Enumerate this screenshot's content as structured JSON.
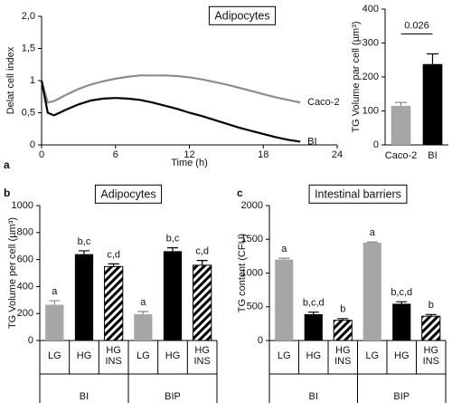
{
  "chart_data": [
    {
      "type": "line",
      "panel": "a",
      "title": "Adipocytes",
      "y_label": "Delat cell index",
      "x_label": "Time (h)",
      "x": [
        0,
        0.5,
        1,
        2,
        3,
        4,
        5,
        6,
        7,
        8,
        9,
        10,
        11,
        12,
        13,
        14,
        15,
        16,
        17,
        18,
        19,
        20,
        21
      ],
      "series": [
        {
          "name": "Caco-2",
          "color": "#8c8c8c",
          "values": [
            1.0,
            0.66,
            0.68,
            0.78,
            0.87,
            0.94,
            0.99,
            1.03,
            1.06,
            1.08,
            1.08,
            1.08,
            1.07,
            1.05,
            1.02,
            0.98,
            0.94,
            0.89,
            0.84,
            0.79,
            0.74,
            0.7,
            0.66
          ]
        },
        {
          "name": "BI",
          "color": "#000000",
          "values": [
            1.0,
            0.5,
            0.46,
            0.55,
            0.63,
            0.69,
            0.72,
            0.73,
            0.72,
            0.7,
            0.66,
            0.61,
            0.56,
            0.5,
            0.45,
            0.39,
            0.33,
            0.27,
            0.22,
            0.17,
            0.12,
            0.08,
            0.05
          ]
        }
      ],
      "xlim": [
        0,
        24
      ],
      "xticks": [
        0,
        6,
        12,
        18,
        24
      ],
      "ylim": [
        0,
        2.0
      ],
      "yticks": [
        0,
        {
          "value": 0.5,
          "label": "0,5"
        },
        1,
        {
          "value": 1.5,
          "label": "1,5"
        },
        {
          "value": 2.0,
          "label": "2,0"
        }
      ]
    },
    {
      "type": "bar",
      "y_label": "TG Volume par cell (µm³)",
      "categories": [
        "Caco-2",
        "BI"
      ],
      "values": [
        115,
        238
      ],
      "errors": [
        10,
        30
      ],
      "colors": [
        "#a6a6a6",
        "#000000"
      ],
      "patterns": [
        "solid",
        "solid"
      ],
      "p_value": 0.026,
      "ylim": [
        0,
        400
      ],
      "yticks": [
        0,
        100,
        200,
        300,
        400
      ]
    },
    {
      "type": "bar",
      "panel": "b",
      "title": "Adipocytes",
      "y_label": "TG Volume per cell (µm³)",
      "categories": [
        "LG",
        "HG",
        "HG INS"
      ],
      "groups": [
        "BI",
        "BIP"
      ],
      "colors": [
        "#a6a6a6",
        "#000000",
        "#000000"
      ],
      "patterns": [
        "solid",
        "solid",
        "hatched"
      ],
      "series": [
        {
          "name": "BI",
          "values": [
            265,
            640,
            548
          ],
          "errors": [
            30,
            25,
            20
          ],
          "annotations": [
            "a",
            "b,c",
            "c,d"
          ]
        },
        {
          "name": "BIP",
          "values": [
            195,
            662,
            558
          ],
          "errors": [
            20,
            25,
            35
          ],
          "annotations": [
            "a",
            "b,c",
            "c,d"
          ]
        }
      ],
      "ylim": [
        0,
        1000
      ],
      "yticks": [
        0,
        200,
        400,
        600,
        800,
        1000
      ]
    },
    {
      "type": "bar",
      "panel": "c",
      "title": "Intestinal barriers",
      "y_label": "TG content (CFU)",
      "categories": [
        "LG",
        "HG",
        "HG INS"
      ],
      "groups": [
        "BI",
        "BIP"
      ],
      "colors": [
        "#a6a6a6",
        "#000000",
        "#000000"
      ],
      "patterns": [
        "solid",
        "solid",
        "hatched"
      ],
      "series": [
        {
          "name": "BI",
          "values": [
            1200,
            390,
            300
          ],
          "errors": [
            20,
            30,
            25
          ],
          "annotations": [
            "a",
            "b,c,d",
            "b"
          ]
        },
        {
          "name": "BIP",
          "values": [
            1450,
            545,
            360
          ],
          "errors": [
            10,
            30,
            25
          ],
          "annotations": [
            "a",
            "b,c,d",
            "b"
          ]
        }
      ],
      "ylim": [
        0,
        2000
      ],
      "yticks": [
        0,
        500,
        1000,
        1500,
        2000
      ]
    }
  ]
}
